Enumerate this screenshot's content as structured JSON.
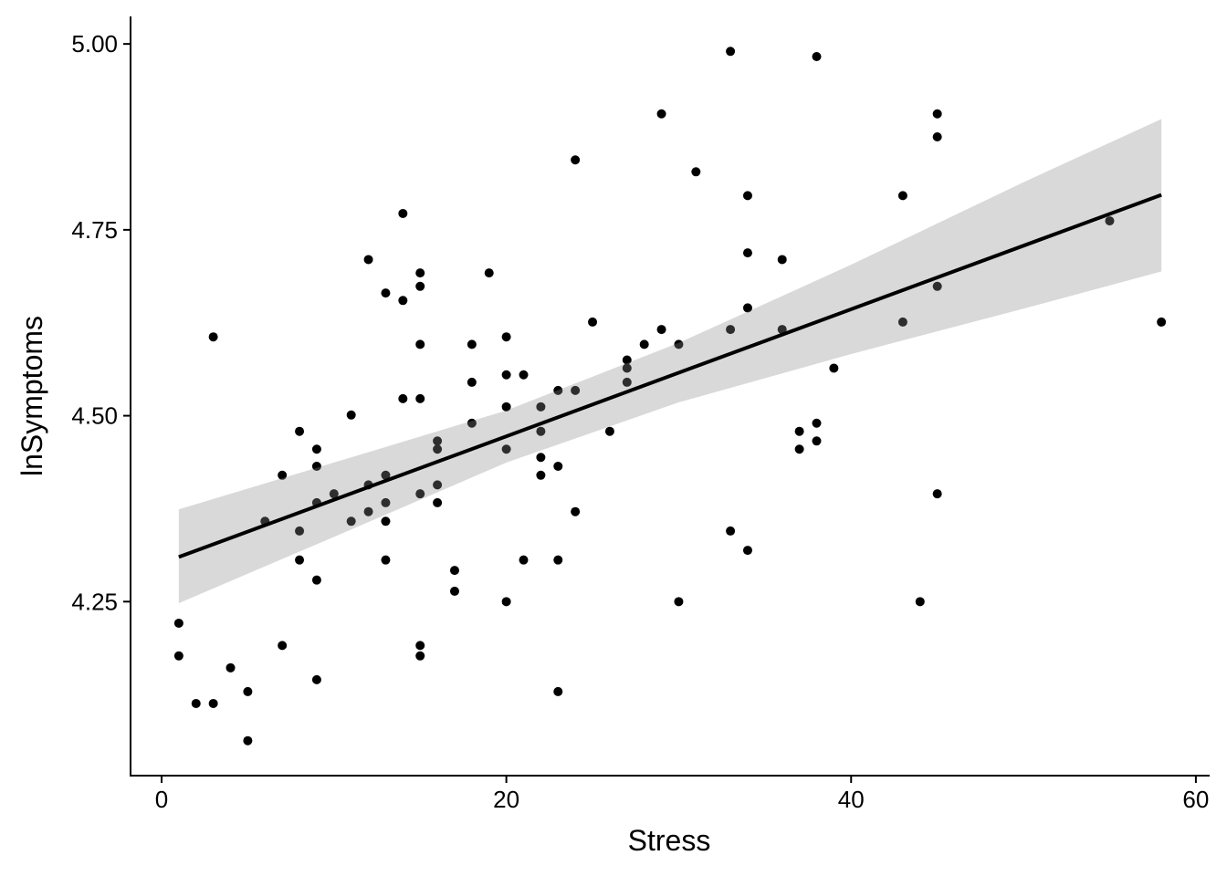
{
  "chart_data": {
    "type": "scatter",
    "title": "",
    "xlabel": "Stress",
    "ylabel": "lnSymptoms",
    "xlim": [
      -1.8,
      60.8
    ],
    "ylim": [
      4.016,
      5.037
    ],
    "xticks": [
      0,
      20,
      40,
      60
    ],
    "xtick_labels": [
      "0",
      "20",
      "40",
      "60"
    ],
    "yticks": [
      4.25,
      4.5,
      4.75,
      5.0
    ],
    "ytick_labels": [
      "4.25",
      "4.50",
      "4.75",
      "5.00"
    ],
    "grid": false,
    "legend": "none",
    "colors": {
      "points": "#000000",
      "line": "#000000",
      "band": "#999999"
    },
    "points": [
      [
        1,
        4.221
      ],
      [
        1,
        4.177
      ],
      [
        2,
        4.113
      ],
      [
        3,
        4.113
      ],
      [
        3,
        4.606
      ],
      [
        4,
        4.161
      ],
      [
        5,
        4.129
      ],
      [
        5,
        4.063
      ],
      [
        6,
        4.358
      ],
      [
        7,
        4.42
      ],
      [
        7,
        4.191
      ],
      [
        8,
        4.479
      ],
      [
        8,
        4.345
      ],
      [
        8,
        4.306
      ],
      [
        9,
        4.455
      ],
      [
        9,
        4.432
      ],
      [
        9,
        4.383
      ],
      [
        9,
        4.279
      ],
      [
        9,
        4.145
      ],
      [
        10,
        4.395
      ],
      [
        11,
        4.501
      ],
      [
        11,
        4.358
      ],
      [
        12,
        4.71
      ],
      [
        12,
        4.407
      ],
      [
        12,
        4.371
      ],
      [
        13,
        4.665
      ],
      [
        13,
        4.42
      ],
      [
        13,
        4.383
      ],
      [
        13,
        4.358
      ],
      [
        13,
        4.306
      ],
      [
        14,
        4.772
      ],
      [
        14,
        4.655
      ],
      [
        14,
        4.523
      ],
      [
        15,
        4.692
      ],
      [
        15,
        4.674
      ],
      [
        15,
        4.596
      ],
      [
        15,
        4.523
      ],
      [
        15,
        4.395
      ],
      [
        15,
        4.191
      ],
      [
        15,
        4.177
      ],
      [
        16,
        4.466
      ],
      [
        16,
        4.455
      ],
      [
        16,
        4.407
      ],
      [
        16,
        4.383
      ],
      [
        17,
        4.292
      ],
      [
        17,
        4.264
      ],
      [
        18,
        4.596
      ],
      [
        18,
        4.545
      ],
      [
        18,
        4.49
      ],
      [
        19,
        4.692
      ],
      [
        20,
        4.606
      ],
      [
        20,
        4.555
      ],
      [
        20,
        4.512
      ],
      [
        20,
        4.455
      ],
      [
        20,
        4.25
      ],
      [
        21,
        4.555
      ],
      [
        21,
        4.306
      ],
      [
        22,
        4.512
      ],
      [
        22,
        4.479
      ],
      [
        22,
        4.444
      ],
      [
        22,
        4.42
      ],
      [
        23,
        4.534
      ],
      [
        23,
        4.432
      ],
      [
        23,
        4.306
      ],
      [
        23,
        4.129
      ],
      [
        24,
        4.844
      ],
      [
        24,
        4.534
      ],
      [
        24,
        4.371
      ],
      [
        25,
        4.626
      ],
      [
        26,
        4.479
      ],
      [
        27,
        4.575
      ],
      [
        27,
        4.564
      ],
      [
        27,
        4.545
      ],
      [
        28,
        4.596
      ],
      [
        29,
        4.906
      ],
      [
        29,
        4.616
      ],
      [
        30,
        4.596
      ],
      [
        30,
        4.25
      ],
      [
        31,
        4.828
      ],
      [
        33,
        4.99
      ],
      [
        33,
        4.616
      ],
      [
        33,
        4.345
      ],
      [
        34,
        4.796
      ],
      [
        34,
        4.719
      ],
      [
        34,
        4.645
      ],
      [
        34,
        4.319
      ],
      [
        36,
        4.71
      ],
      [
        36,
        4.616
      ],
      [
        37,
        4.479
      ],
      [
        37,
        4.455
      ],
      [
        38,
        4.983
      ],
      [
        38,
        4.49
      ],
      [
        38,
        4.466
      ],
      [
        39,
        4.564
      ],
      [
        43,
        4.796
      ],
      [
        43,
        4.626
      ],
      [
        44,
        4.25
      ],
      [
        45,
        4.906
      ],
      [
        45,
        4.875
      ],
      [
        45,
        4.674
      ],
      [
        45,
        4.395
      ],
      [
        55,
        4.762
      ],
      [
        58,
        4.626
      ]
    ],
    "fit_line": {
      "x": [
        1,
        58
      ],
      "y": [
        4.31,
        4.797
      ]
    },
    "confidence_band": [
      {
        "x": 1,
        "lower": 4.248,
        "upper": 4.374
      },
      {
        "x": 10,
        "lower": 4.337,
        "upper": 4.437
      },
      {
        "x": 20,
        "lower": 4.437,
        "upper": 4.507
      },
      {
        "x": 30,
        "lower": 4.518,
        "upper": 4.598
      },
      {
        "x": 40,
        "lower": 4.583,
        "upper": 4.703
      },
      {
        "x": 50,
        "lower": 4.644,
        "upper": 4.814
      },
      {
        "x": 58,
        "lower": 4.694,
        "upper": 4.899
      }
    ]
  }
}
